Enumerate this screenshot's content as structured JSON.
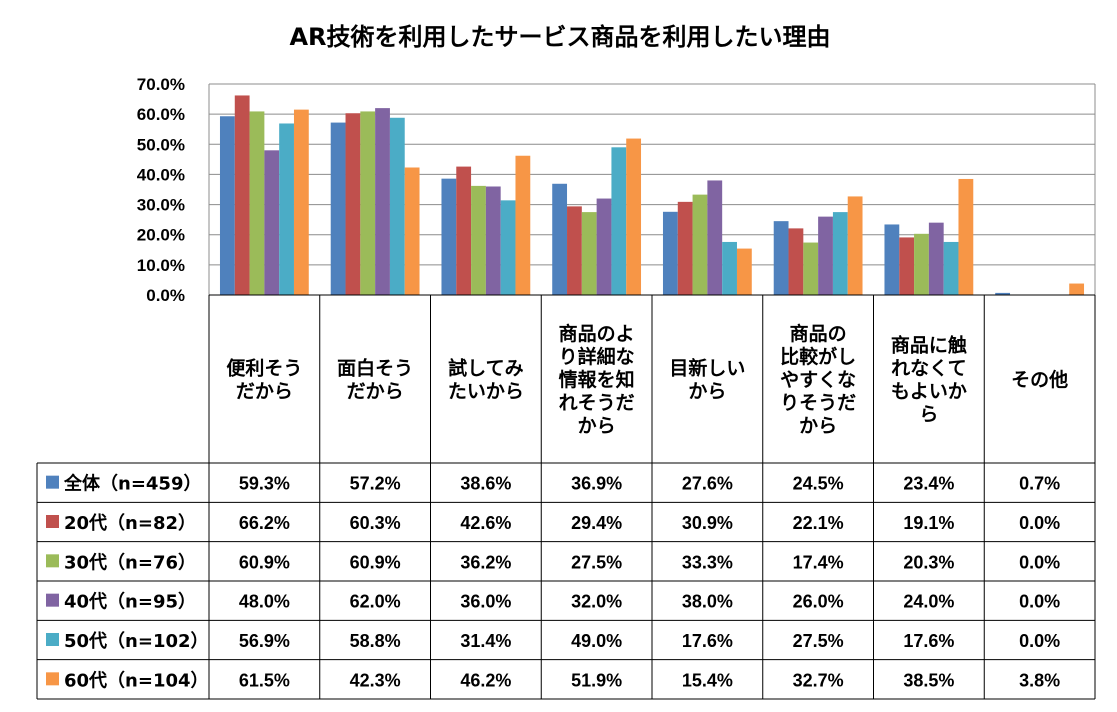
{
  "chart_data": {
    "type": "bar",
    "title": "AR技術を利用したサービス商品を利用したい理由",
    "y_tick_labels": [
      "0.0%",
      "10.0%",
      "20.0%",
      "30.0%",
      "40.0%",
      "50.0%",
      "60.0%",
      "70.0%"
    ],
    "ylim": [
      0,
      70
    ],
    "grid": true,
    "legend_placement": "data-table-left",
    "categories": [
      [
        "便利そう",
        "だから"
      ],
      [
        "面白そう",
        "だから"
      ],
      [
        "試してみ",
        "たいから"
      ],
      [
        "商品のよ",
        "り詳細な",
        "情報を知",
        "れそうだ",
        "から"
      ],
      [
        "目新しい",
        "から"
      ],
      [
        "商品の",
        "比較がし",
        "やすくな",
        "りそうだ",
        "から"
      ],
      [
        "商品に触",
        "れなくて",
        "もよいか",
        "ら"
      ],
      [
        "その他"
      ]
    ],
    "series": [
      {
        "name": "全体（n=459）",
        "color": "#4F81BD",
        "values": [
          59.3,
          57.2,
          38.6,
          36.9,
          27.6,
          24.5,
          23.4,
          0.7
        ],
        "labels": [
          "59.3%",
          "57.2%",
          "38.6%",
          "36.9%",
          "27.6%",
          "24.5%",
          "23.4%",
          "0.7%"
        ]
      },
      {
        "name": "20代（n=82）",
        "color": "#C0504D",
        "values": [
          66.2,
          60.3,
          42.6,
          29.4,
          30.9,
          22.1,
          19.1,
          0.0
        ],
        "labels": [
          "66.2%",
          "60.3%",
          "42.6%",
          "29.4%",
          "30.9%",
          "22.1%",
          "19.1%",
          "0.0%"
        ]
      },
      {
        "name": "30代（n=76）",
        "color": "#9BBB59",
        "values": [
          60.9,
          60.9,
          36.2,
          27.5,
          33.3,
          17.4,
          20.3,
          0.0
        ],
        "labels": [
          "60.9%",
          "60.9%",
          "36.2%",
          "27.5%",
          "33.3%",
          "17.4%",
          "20.3%",
          "0.0%"
        ]
      },
      {
        "name": "40代（n=95）",
        "color": "#8064A2",
        "values": [
          48.0,
          62.0,
          36.0,
          32.0,
          38.0,
          26.0,
          24.0,
          0.0
        ],
        "labels": [
          "48.0%",
          "62.0%",
          "36.0%",
          "32.0%",
          "38.0%",
          "26.0%",
          "24.0%",
          "0.0%"
        ]
      },
      {
        "name": "50代（n=102）",
        "color": "#4BACC6",
        "values": [
          56.9,
          58.8,
          31.4,
          49.0,
          17.6,
          27.5,
          17.6,
          0.0
        ],
        "labels": [
          "56.9%",
          "58.8%",
          "31.4%",
          "49.0%",
          "17.6%",
          "27.5%",
          "17.6%",
          "0.0%"
        ]
      },
      {
        "name": "60代（n=104）",
        "color": "#F79646",
        "values": [
          61.5,
          42.3,
          46.2,
          51.9,
          15.4,
          32.7,
          38.5,
          3.8
        ],
        "labels": [
          "61.5%",
          "42.3%",
          "46.2%",
          "51.9%",
          "15.4%",
          "32.7%",
          "38.5%",
          "3.8%"
        ]
      }
    ]
  }
}
